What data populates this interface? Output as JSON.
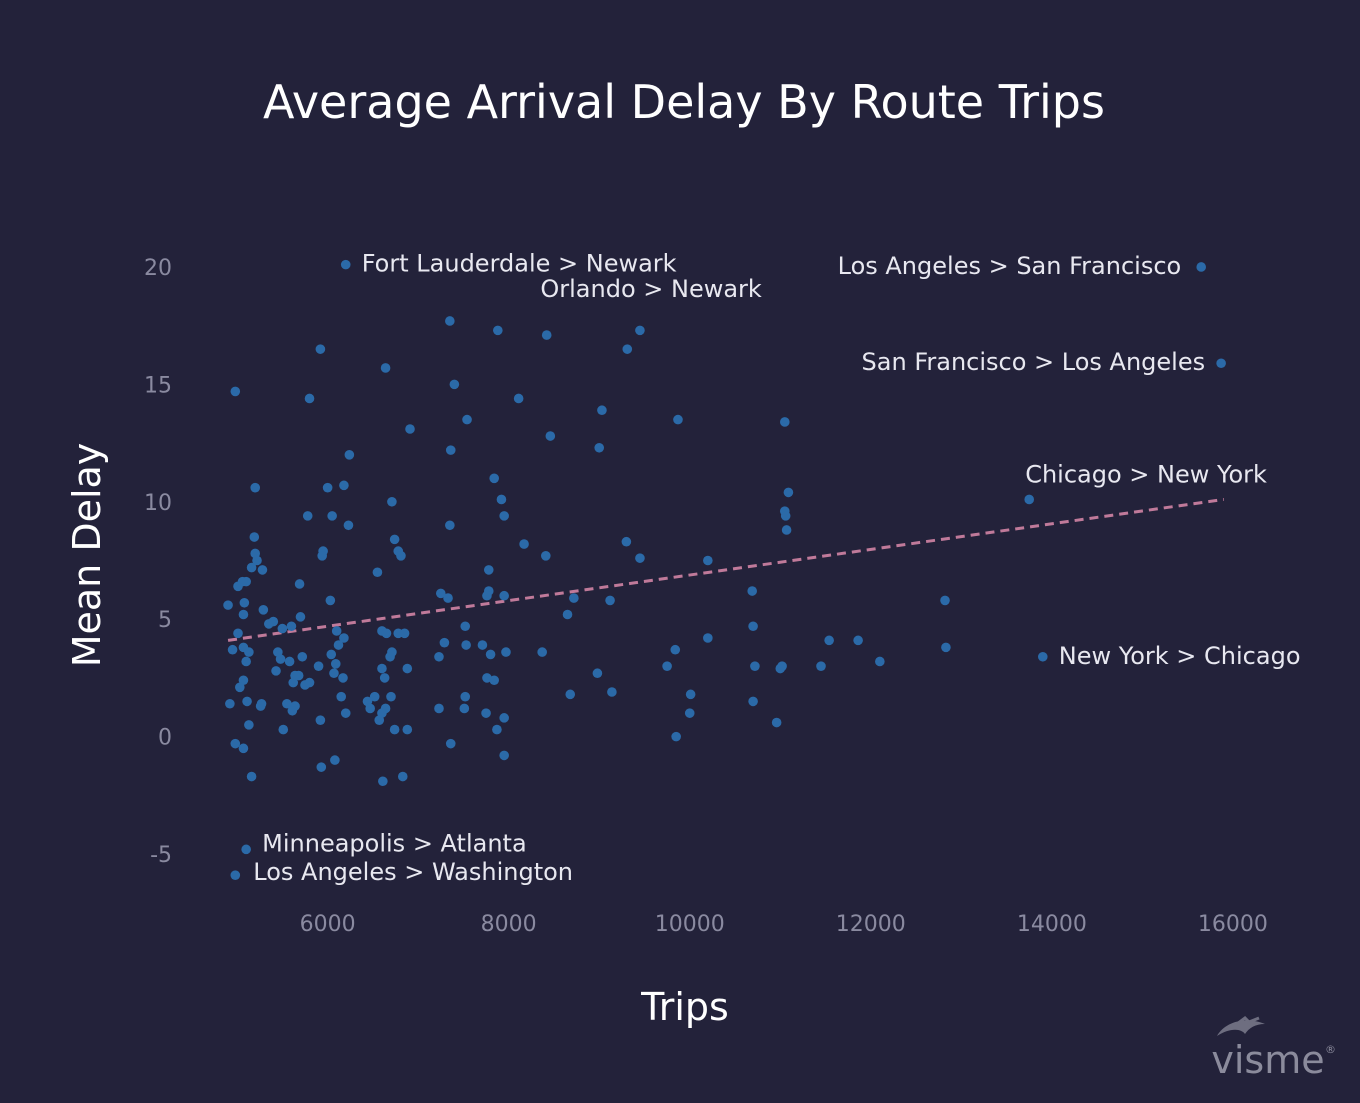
{
  "chart_data": {
    "type": "scatter",
    "title": "Average Arrival Delay By Route Trips",
    "xlabel": "Trips",
    "ylabel": "Mean Delay",
    "xlim": [
      4800,
      16200
    ],
    "ylim": [
      -7,
      22
    ],
    "xticks": [
      6000,
      8000,
      10000,
      12000,
      14000,
      16000
    ],
    "yticks": [
      -5,
      0,
      5,
      10,
      15,
      20
    ],
    "grid": false,
    "point_color": "#2b6aa8",
    "trend_color": "#c07a9a",
    "trendline": {
      "x": [
        4900,
        15900
      ],
      "y": [
        4.1,
        10.1
      ]
    },
    "annotations": [
      {
        "text": "Fort Lauderdale >  Newark",
        "x": 6200,
        "y": 20.1
      },
      {
        "text": "Orlando > Newark",
        "x": 7350,
        "y": 17.7
      },
      {
        "text": "Los Angeles > San Francisco",
        "x": 15650,
        "y": 20.0
      },
      {
        "text": "San Francisco > Los Angeles",
        "x": 15870,
        "y": 15.9
      },
      {
        "text": "Chicago > New York",
        "x": 13750,
        "y": 10.1
      },
      {
        "text": "New York > Chicago",
        "x": 13900,
        "y": 3.4
      },
      {
        "text": "Minneapolis > Atlanta",
        "x": 5100,
        "y": -4.8
      },
      {
        "text": "Los Angeles > Washington",
        "x": 4980,
        "y": -5.9
      }
    ],
    "points": [
      [
        6200,
        20.1
      ],
      [
        7350,
        17.7
      ],
      [
        15650,
        20.0
      ],
      [
        15870,
        15.9
      ],
      [
        13750,
        10.1
      ],
      [
        13900,
        3.4
      ],
      [
        5100,
        -4.8
      ],
      [
        4980,
        -5.9
      ],
      [
        7880,
        17.3
      ],
      [
        8420,
        17.1
      ],
      [
        9450,
        17.3
      ],
      [
        9310,
        16.5
      ],
      [
        5920,
        16.5
      ],
      [
        6640,
        15.7
      ],
      [
        4980,
        14.7
      ],
      [
        5800,
        14.4
      ],
      [
        7400,
        15.0
      ],
      [
        8110,
        14.4
      ],
      [
        9030,
        13.9
      ],
      [
        9870,
        13.5
      ],
      [
        7540,
        13.5
      ],
      [
        11050,
        13.4
      ],
      [
        6910,
        13.1
      ],
      [
        8460,
        12.8
      ],
      [
        7360,
        12.2
      ],
      [
        9000,
        12.3
      ],
      [
        6240,
        12.0
      ],
      [
        5200,
        10.6
      ],
      [
        6000,
        10.6
      ],
      [
        6180,
        10.7
      ],
      [
        7840,
        11.0
      ],
      [
        7920,
        10.1
      ],
      [
        6710,
        10.0
      ],
      [
        11090,
        10.4
      ],
      [
        11050,
        9.6
      ],
      [
        11060,
        9.4
      ],
      [
        5780,
        9.4
      ],
      [
        6050,
        9.4
      ],
      [
        6230,
        9.0
      ],
      [
        7350,
        9.0
      ],
      [
        7950,
        9.4
      ],
      [
        11070,
        8.8
      ],
      [
        5190,
        8.5
      ],
      [
        6740,
        8.4
      ],
      [
        9300,
        8.3
      ],
      [
        8170,
        8.2
      ],
      [
        6780,
        7.9
      ],
      [
        5950,
        7.9
      ],
      [
        5940,
        7.7
      ],
      [
        8410,
        7.7
      ],
      [
        9450,
        7.6
      ],
      [
        5200,
        7.8
      ],
      [
        5220,
        7.5
      ],
      [
        10200,
        7.5
      ],
      [
        6810,
        7.7
      ],
      [
        5160,
        7.2
      ],
      [
        7780,
        7.1
      ],
      [
        5280,
        7.1
      ],
      [
        6550,
        7.0
      ],
      [
        5690,
        6.5
      ],
      [
        5100,
        6.6
      ],
      [
        5010,
        6.4
      ],
      [
        5060,
        6.6
      ],
      [
        7780,
        6.2
      ],
      [
        7760,
        6.0
      ],
      [
        7250,
        6.1
      ],
      [
        7950,
        6.0
      ],
      [
        10690,
        6.2
      ],
      [
        7330,
        5.9
      ],
      [
        8720,
        5.9
      ],
      [
        5080,
        5.7
      ],
      [
        6030,
        5.8
      ],
      [
        9120,
        5.8
      ],
      [
        5070,
        5.2
      ],
      [
        4900,
        5.6
      ],
      [
        12820,
        5.8
      ],
      [
        5290,
        5.4
      ],
      [
        8650,
        5.2
      ],
      [
        5700,
        5.1
      ],
      [
        5400,
        4.9
      ],
      [
        7520,
        4.7
      ],
      [
        5010,
        4.4
      ],
      [
        5500,
        4.6
      ],
      [
        5350,
        4.8
      ],
      [
        5600,
        4.7
      ],
      [
        6100,
        4.5
      ],
      [
        6600,
        4.5
      ],
      [
        6650,
        4.4
      ],
      [
        6780,
        4.4
      ],
      [
        6850,
        4.4
      ],
      [
        10700,
        4.7
      ],
      [
        12830,
        3.8
      ],
      [
        10200,
        4.2
      ],
      [
        11540,
        4.1
      ],
      [
        11860,
        4.1
      ],
      [
        6180,
        4.2
      ],
      [
        7290,
        4.0
      ],
      [
        7530,
        3.9
      ],
      [
        7710,
        3.9
      ],
      [
        6120,
        3.9
      ],
      [
        5450,
        3.6
      ],
      [
        5070,
        3.8
      ],
      [
        4950,
        3.7
      ],
      [
        5130,
        3.6
      ],
      [
        6040,
        3.5
      ],
      [
        8370,
        3.6
      ],
      [
        7970,
        3.6
      ],
      [
        7800,
        3.5
      ],
      [
        9840,
        3.7
      ],
      [
        10720,
        3.0
      ],
      [
        12100,
        3.2
      ],
      [
        11450,
        3.0
      ],
      [
        9750,
        3.0
      ],
      [
        5100,
        3.2
      ],
      [
        5480,
        3.3
      ],
      [
        5580,
        3.2
      ],
      [
        5720,
        3.4
      ],
      [
        5900,
        3.0
      ],
      [
        6090,
        3.1
      ],
      [
        6690,
        3.4
      ],
      [
        6710,
        3.6
      ],
      [
        6880,
        2.9
      ],
      [
        7230,
        3.4
      ],
      [
        11000,
        2.9
      ],
      [
        11020,
        3.0
      ],
      [
        8980,
        2.7
      ],
      [
        6600,
        2.9
      ],
      [
        6630,
        2.5
      ],
      [
        6170,
        2.5
      ],
      [
        6070,
        2.7
      ],
      [
        5680,
        2.6
      ],
      [
        5640,
        2.6
      ],
      [
        5620,
        2.3
      ],
      [
        5750,
        2.2
      ],
      [
        5800,
        2.3
      ],
      [
        5430,
        2.8
      ],
      [
        7760,
        2.5
      ],
      [
        7840,
        2.4
      ],
      [
        5070,
        2.4
      ],
      [
        5030,
        2.1
      ],
      [
        6150,
        1.7
      ],
      [
        6440,
        1.5
      ],
      [
        6520,
        1.7
      ],
      [
        6700,
        1.7
      ],
      [
        8680,
        1.8
      ],
      [
        9140,
        1.9
      ],
      [
        10010,
        1.8
      ],
      [
        10700,
        1.5
      ],
      [
        5110,
        1.5
      ],
      [
        5270,
        1.4
      ],
      [
        5550,
        1.4
      ],
      [
        5640,
        1.3
      ],
      [
        6470,
        1.2
      ],
      [
        6640,
        1.2
      ],
      [
        6600,
        1.0
      ],
      [
        6200,
        1.0
      ],
      [
        7230,
        1.2
      ],
      [
        7510,
        1.2
      ],
      [
        7520,
        1.7
      ],
      [
        7750,
        1.0
      ],
      [
        7950,
        0.8
      ],
      [
        5260,
        1.3
      ],
      [
        4920,
        1.4
      ],
      [
        5610,
        1.1
      ],
      [
        5920,
        0.7
      ],
      [
        6570,
        0.7
      ],
      [
        10000,
        1.0
      ],
      [
        10960,
        0.6
      ],
      [
        5130,
        0.5
      ],
      [
        5510,
        0.3
      ],
      [
        6740,
        0.3
      ],
      [
        6880,
        0.3
      ],
      [
        7870,
        0.3
      ],
      [
        9850,
        0.0
      ],
      [
        4980,
        -0.3
      ],
      [
        5070,
        -0.5
      ],
      [
        7360,
        -0.3
      ],
      [
        7950,
        -0.8
      ],
      [
        6080,
        -1.0
      ],
      [
        5930,
        -1.3
      ],
      [
        5160,
        -1.7
      ],
      [
        6610,
        -1.9
      ],
      [
        6830,
        -1.7
      ]
    ]
  },
  "branding": {
    "logo_text": "visme",
    "logo_mark": "®"
  }
}
